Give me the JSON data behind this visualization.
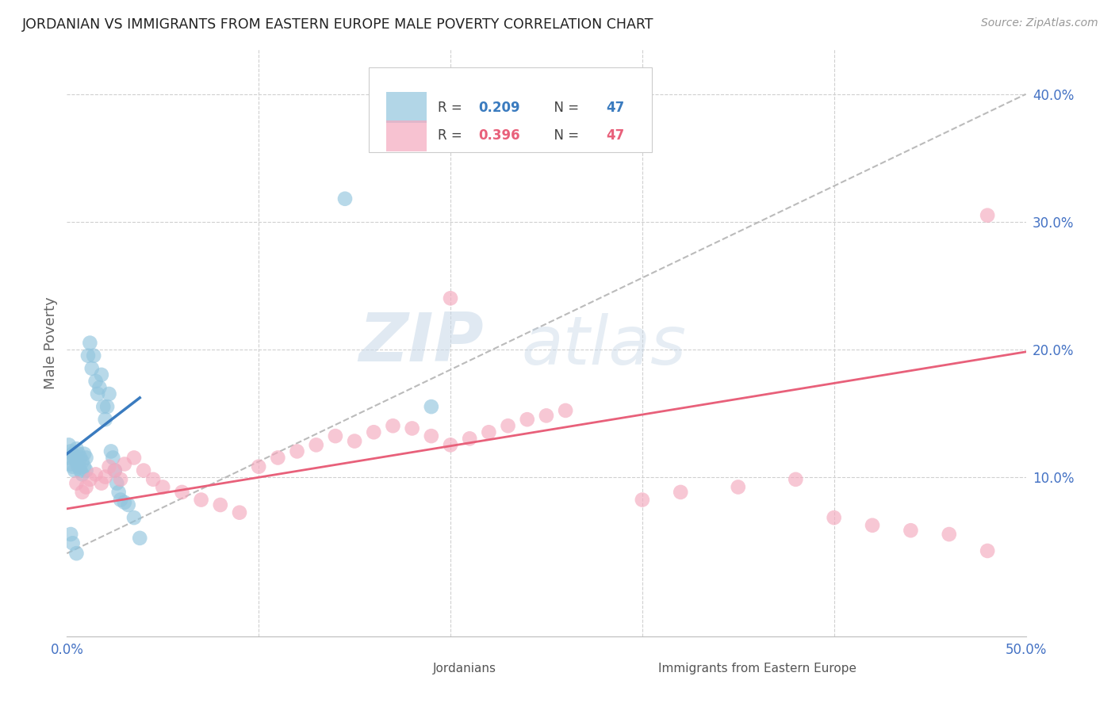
{
  "title": "JORDANIAN VS IMMIGRANTS FROM EASTERN EUROPE MALE POVERTY CORRELATION CHART",
  "source": "Source: ZipAtlas.com",
  "ylabel": "Male Poverty",
  "xlim": [
    0.0,
    0.5
  ],
  "ylim": [
    -0.025,
    0.435
  ],
  "ytick_positions": [
    0.1,
    0.2,
    0.3,
    0.4
  ],
  "ytick_labels": [
    "10.0%",
    "20.0%",
    "30.0%",
    "40.0%"
  ],
  "xtick_positions": [
    0.0,
    0.5
  ],
  "xtick_labels": [
    "0.0%",
    "50.0%"
  ],
  "legend_r1": "0.209",
  "legend_n1": "47",
  "legend_r2": "0.396",
  "legend_n2": "47",
  "legend_label1": "Jordanians",
  "legend_label2": "Immigrants from Eastern Europe",
  "color_blue": "#92c5de",
  "color_pink": "#f4a9be",
  "color_blue_line": "#3a7bbf",
  "color_pink_line": "#e8607a",
  "color_dashed": "#bbbbbb",
  "watermark_zip": "ZIP",
  "watermark_atlas": "atlas",
  "title_color": "#222222",
  "axis_label_color": "#666666",
  "tick_label_color": "#4472c4",
  "grid_color": "#d0d0d0",
  "blue_line_x": [
    0.0,
    0.038
  ],
  "blue_line_y": [
    0.118,
    0.162
  ],
  "dashed_line_x": [
    0.0,
    0.5
  ],
  "dashed_line_y": [
    0.04,
    0.4
  ],
  "pink_line_x": [
    0.0,
    0.5
  ],
  "pink_line_y": [
    0.075,
    0.198
  ],
  "jordanians_x": [
    0.001,
    0.001,
    0.002,
    0.002,
    0.003,
    0.003,
    0.004,
    0.004,
    0.005,
    0.005,
    0.006,
    0.006,
    0.007,
    0.007,
    0.008,
    0.008,
    0.009,
    0.009,
    0.01,
    0.01,
    0.011,
    0.012,
    0.013,
    0.014,
    0.015,
    0.016,
    0.017,
    0.018,
    0.019,
    0.02,
    0.021,
    0.022,
    0.023,
    0.024,
    0.025,
    0.026,
    0.027,
    0.028,
    0.03,
    0.032,
    0.035,
    0.038,
    0.002,
    0.003,
    0.005,
    0.145,
    0.19
  ],
  "jordanians_y": [
    0.115,
    0.125,
    0.11,
    0.12,
    0.108,
    0.118,
    0.105,
    0.115,
    0.112,
    0.122,
    0.108,
    0.118,
    0.105,
    0.115,
    0.112,
    0.102,
    0.118,
    0.108,
    0.115,
    0.105,
    0.195,
    0.205,
    0.185,
    0.195,
    0.175,
    0.165,
    0.17,
    0.18,
    0.155,
    0.145,
    0.155,
    0.165,
    0.12,
    0.115,
    0.105,
    0.095,
    0.088,
    0.082,
    0.08,
    0.078,
    0.068,
    0.052,
    0.055,
    0.048,
    0.04,
    0.318,
    0.155
  ],
  "eastern_europe_x": [
    0.005,
    0.008,
    0.01,
    0.012,
    0.015,
    0.018,
    0.02,
    0.022,
    0.025,
    0.028,
    0.03,
    0.035,
    0.04,
    0.045,
    0.05,
    0.06,
    0.07,
    0.08,
    0.09,
    0.1,
    0.11,
    0.12,
    0.13,
    0.14,
    0.15,
    0.16,
    0.17,
    0.18,
    0.19,
    0.2,
    0.21,
    0.22,
    0.23,
    0.24,
    0.25,
    0.26,
    0.3,
    0.32,
    0.35,
    0.38,
    0.4,
    0.42,
    0.44,
    0.46,
    0.48,
    0.2,
    0.48
  ],
  "eastern_europe_y": [
    0.095,
    0.088,
    0.092,
    0.098,
    0.102,
    0.095,
    0.1,
    0.108,
    0.105,
    0.098,
    0.11,
    0.115,
    0.105,
    0.098,
    0.092,
    0.088,
    0.082,
    0.078,
    0.072,
    0.108,
    0.115,
    0.12,
    0.125,
    0.132,
    0.128,
    0.135,
    0.14,
    0.138,
    0.132,
    0.125,
    0.13,
    0.135,
    0.14,
    0.145,
    0.148,
    0.152,
    0.082,
    0.088,
    0.092,
    0.098,
    0.068,
    0.062,
    0.058,
    0.055,
    0.042,
    0.24,
    0.305
  ]
}
